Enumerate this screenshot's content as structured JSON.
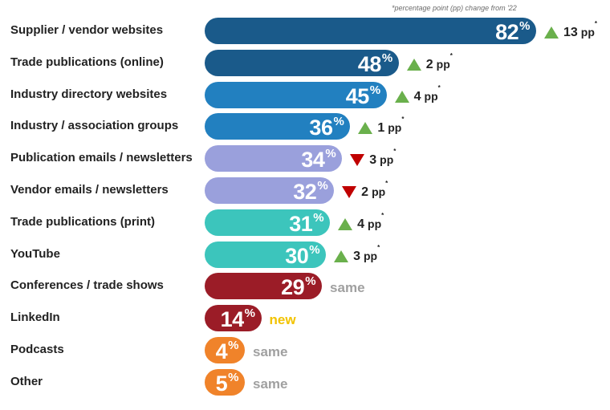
{
  "footnote": "*percentage point (pp) change from '22",
  "chart_data": {
    "type": "bar",
    "orientation": "horizontal",
    "categories": [
      "Supplier / vendor websites",
      "Trade publications (online)",
      "Industry directory websites",
      "Industry / association groups",
      "Publication emails / newsletters",
      "Vendor emails / newsletters",
      "Trade publications (print)",
      "YouTube",
      "Conferences / trade shows",
      "LinkedIn",
      "Podcasts",
      "Other"
    ],
    "values": [
      82,
      48,
      45,
      36,
      34,
      32,
      31,
      30,
      29,
      14,
      4,
      5
    ],
    "value_labels": [
      "82",
      "48",
      "45",
      "36",
      "34",
      "32",
      "31",
      "30",
      "29",
      "14",
      "4",
      "5"
    ],
    "percent_sign": "%",
    "change": [
      {
        "dir": "up",
        "amount": "13",
        "unit": "pp",
        "mark": "*"
      },
      {
        "dir": "up",
        "amount": "2",
        "unit": "pp",
        "mark": "*"
      },
      {
        "dir": "up",
        "amount": "4",
        "unit": "pp",
        "mark": "*"
      },
      {
        "dir": "up",
        "amount": "1",
        "unit": "pp",
        "mark": "*"
      },
      {
        "dir": "down",
        "amount": "3",
        "unit": "pp",
        "mark": "*"
      },
      {
        "dir": "down",
        "amount": "2",
        "unit": "pp",
        "mark": "*"
      },
      {
        "dir": "up",
        "amount": "4",
        "unit": "pp",
        "mark": "*"
      },
      {
        "dir": "up",
        "amount": "3",
        "unit": "pp",
        "mark": "*"
      },
      {
        "dir": "same",
        "text": "same"
      },
      {
        "dir": "new",
        "text": "new"
      },
      {
        "dir": "same",
        "text": "same"
      },
      {
        "dir": "same",
        "text": "same"
      }
    ],
    "colors": [
      "#1a5a8a",
      "#1a5a8a",
      "#2280c0",
      "#2280c0",
      "#9aa0dc",
      "#9aa0dc",
      "#3cc5bc",
      "#3cc5bc",
      "#9b1c27",
      "#9b1c27",
      "#f0832a",
      "#f0832a"
    ],
    "title": "",
    "xlabel": "",
    "ylabel": "",
    "xlim": [
      0,
      82
    ],
    "grid": false,
    "legend": "none"
  }
}
